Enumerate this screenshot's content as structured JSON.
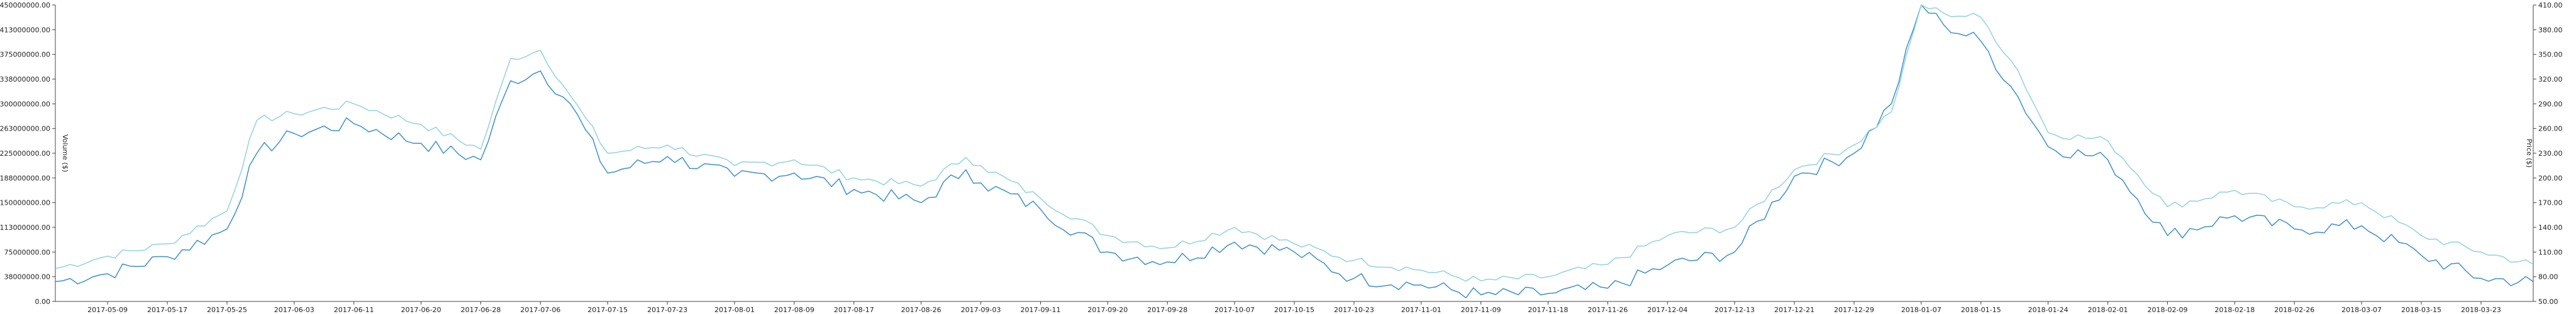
{
  "chart_data": {
    "type": "line",
    "title": "",
    "xlabel": "",
    "ylabel_left": "Volume ($)",
    "ylabel_right": "Price ($)",
    "grid": false,
    "legend": "none",
    "x_ticks": [
      "2017-05-09",
      "2017-05-17",
      "2017-05-25",
      "2017-06-03",
      "2017-06-11",
      "2017-06-20",
      "2017-06-28",
      "2017-07-06",
      "2017-07-15",
      "2017-07-23",
      "2017-08-01",
      "2017-08-09",
      "2017-08-17",
      "2017-08-26",
      "2017-09-03",
      "2017-09-11",
      "2017-09-20",
      "2017-09-28",
      "2017-10-07",
      "2017-10-15",
      "2017-10-23",
      "2017-11-01",
      "2017-11-09",
      "2017-11-18",
      "2017-11-26",
      "2017-12-04",
      "2017-12-13",
      "2017-12-21",
      "2017-12-29",
      "2018-01-07",
      "2018-01-15",
      "2018-01-24",
      "2018-02-01",
      "2018-02-09",
      "2018-02-18",
      "2018-02-26",
      "2018-03-07",
      "2018-03-15",
      "2018-03-23"
    ],
    "x_range": [
      "2017-05-02",
      "2018-03-30"
    ],
    "y_left": {
      "ticks": [
        "0.00",
        "38000000.00",
        "75000000.00",
        "113000000.00",
        "150000000.00",
        "188000000.00",
        "225000000.00",
        "263000000.00",
        "300000000.00",
        "338000000.00",
        "375000000.00",
        "413000000.00",
        "450000000.00"
      ],
      "ylim": [
        0,
        450000000
      ]
    },
    "y_right": {
      "ticks": [
        "50.00",
        "80.00",
        "110.00",
        "140.00",
        "170.00",
        "200.00",
        "230.00",
        "260.00",
        "290.00",
        "320.00",
        "350.00",
        "380.00",
        "410.00"
      ],
      "ylim": [
        50,
        410
      ]
    },
    "series": [
      {
        "axis": "left",
        "color": "#3a8fd0",
        "x": [
          "2017-05-02",
          "2017-05-09",
          "2017-05-17",
          "2017-05-25",
          "2017-05-29",
          "2017-06-03",
          "2017-06-11",
          "2017-06-20",
          "2017-06-28",
          "2017-07-02",
          "2017-07-06",
          "2017-07-10",
          "2017-07-15",
          "2017-07-23",
          "2017-08-01",
          "2017-08-09",
          "2017-08-17",
          "2017-08-26",
          "2017-09-01",
          "2017-09-03",
          "2017-09-11",
          "2017-09-20",
          "2017-09-28",
          "2017-10-07",
          "2017-10-15",
          "2017-10-23",
          "2017-11-01",
          "2017-11-09",
          "2017-11-18",
          "2017-11-26",
          "2017-12-04",
          "2017-12-13",
          "2017-12-21",
          "2017-12-29",
          "2018-01-03",
          "2018-01-07",
          "2018-01-10",
          "2018-01-15",
          "2018-01-20",
          "2018-01-24",
          "2018-02-01",
          "2018-02-09",
          "2018-02-18",
          "2018-02-26",
          "2018-03-07",
          "2018-03-15",
          "2018-03-23",
          "2018-03-30"
        ],
        "y": [
          30000000,
          42000000,
          68000000,
          110000000,
          225000000,
          255000000,
          270000000,
          240000000,
          215000000,
          335000000,
          350000000,
          300000000,
          195000000,
          220000000,
          190000000,
          195000000,
          170000000,
          150000000,
          200000000,
          180000000,
          140000000,
          75000000,
          60000000,
          90000000,
          75000000,
          35000000,
          25000000,
          10000000,
          12000000,
          20000000,
          55000000,
          75000000,
          190000000,
          225000000,
          300000000,
          450000000,
          420000000,
          395000000,
          310000000,
          235000000,
          215000000,
          100000000,
          130000000,
          110000000,
          115000000,
          70000000,
          35000000,
          30000000
        ]
      },
      {
        "axis": "right",
        "color": "#8fd3dc",
        "x": [
          "2017-05-02",
          "2017-05-09",
          "2017-05-17",
          "2017-05-25",
          "2017-05-29",
          "2017-06-03",
          "2017-06-11",
          "2017-06-20",
          "2017-06-28",
          "2017-07-02",
          "2017-07-06",
          "2017-07-10",
          "2017-07-15",
          "2017-07-23",
          "2017-08-01",
          "2017-08-09",
          "2017-08-17",
          "2017-08-26",
          "2017-09-01",
          "2017-09-03",
          "2017-09-11",
          "2017-09-20",
          "2017-09-28",
          "2017-10-07",
          "2017-10-15",
          "2017-10-23",
          "2017-11-01",
          "2017-11-09",
          "2017-11-18",
          "2017-11-26",
          "2017-12-04",
          "2017-12-13",
          "2017-12-21",
          "2017-12-29",
          "2018-01-03",
          "2018-01-07",
          "2018-01-10",
          "2018-01-15",
          "2018-01-20",
          "2018-01-24",
          "2018-02-01",
          "2018-02-09",
          "2018-02-18",
          "2018-02-26",
          "2018-03-07",
          "2018-03-15",
          "2018-03-23",
          "2018-03-30"
        ],
        "y": [
          90,
          105,
          120,
          160,
          270,
          278,
          290,
          265,
          235,
          345,
          355,
          300,
          230,
          240,
          215,
          222,
          200,
          190,
          225,
          215,
          175,
          130,
          115,
          140,
          120,
          100,
          88,
          75,
          80,
          95,
          130,
          140,
          210,
          240,
          280,
          410,
          400,
          395,
          330,
          255,
          245,
          165,
          185,
          165,
          170,
          130,
          110,
          95
        ]
      }
    ]
  }
}
